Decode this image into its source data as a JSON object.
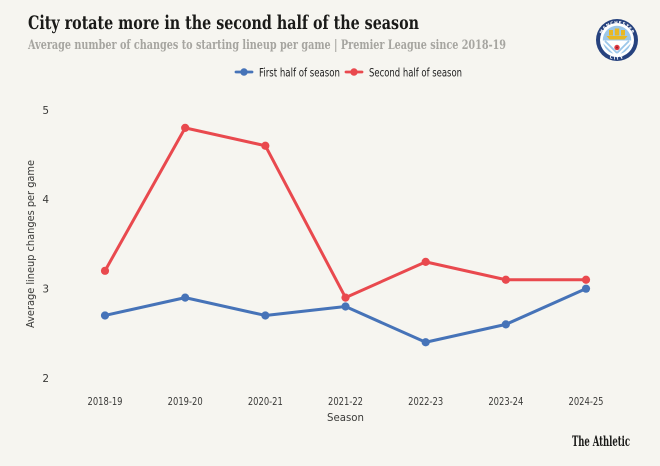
{
  "title": "City rotate more in the second half of the season",
  "subtitle": "Average number of changes to starting lineup per game | Premier League since 2018-19",
  "footer_logo": "The Athletic",
  "badge": "manchester-city-crest",
  "colors": {
    "background": "#f6f5f0",
    "first_half": "#4673b8",
    "second_half": "#e9494e",
    "title_text": "#1a1a18",
    "subtitle_text": "#a6a5a0",
    "axis_text": "#3b3b39"
  },
  "chart_data": {
    "type": "line",
    "categories": [
      "2018-19",
      "2019-20",
      "2020-21",
      "2021-22",
      "2022-23",
      "2023-24",
      "2024-25"
    ],
    "series": [
      {
        "name": "First half of season",
        "color": "#4673b8",
        "values": [
          2.7,
          2.9,
          2.7,
          2.8,
          2.4,
          2.6,
          3.0
        ]
      },
      {
        "name": "Second half of season",
        "color": "#e9494e",
        "values": [
          3.2,
          4.8,
          4.6,
          2.9,
          3.3,
          3.1,
          3.1
        ]
      }
    ],
    "title": "City rotate more in the second half of the season",
    "xlabel": "Season",
    "ylabel": "Average lineup changes per game",
    "ylim": [
      2,
      5
    ],
    "yticks": [
      2,
      3,
      4,
      5
    ],
    "grid": false,
    "legend_position": "top"
  }
}
